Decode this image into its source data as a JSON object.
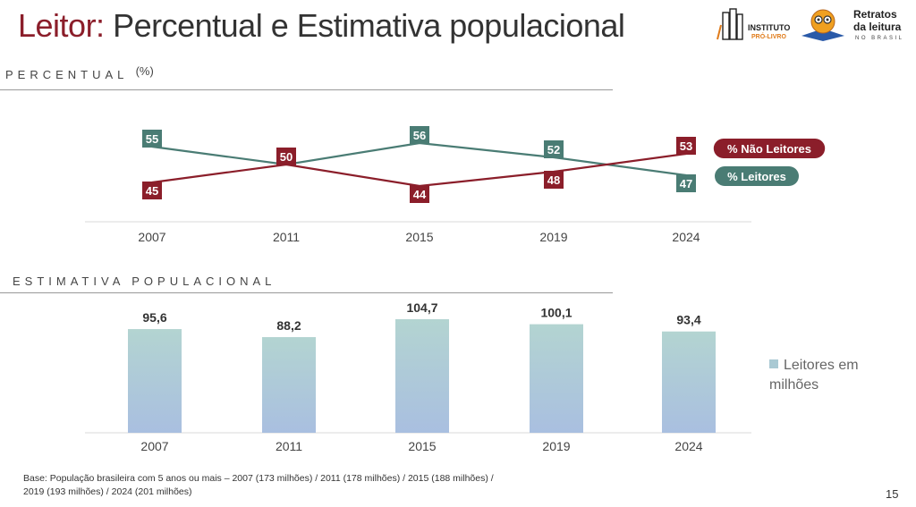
{
  "title": {
    "part1": "Leitor:",
    "part2": "Percentual e Estimativa populacional"
  },
  "logos": {
    "instituto": {
      "line1": "INSTITUTO",
      "line2": "PRÓ-LIVRO"
    },
    "retratos": {
      "line1": "Retratos",
      "line2": "da leitura",
      "line3": "NO BRASIL"
    }
  },
  "section1": {
    "label": "PERCENTUAL",
    "unit": "(%)"
  },
  "section2": {
    "label": "ESTIMATIVA POPULACIONAL"
  },
  "colors": {
    "leitores": "#4a7c74",
    "nao_leitores": "#8b1e2a",
    "bar_top": "#b3d4d1",
    "bar_bottom": "#a9bfe0",
    "title_accent": "#8b1e2a"
  },
  "chart_data": [
    {
      "type": "line",
      "categories": [
        "2007",
        "2011",
        "2015",
        "2019",
        "2024"
      ],
      "series": [
        {
          "name": "% Leitores",
          "values": [
            55,
            50,
            56,
            52,
            47
          ],
          "color": "#4a7c74"
        },
        {
          "name": "% Não Leitores",
          "values": [
            45,
            50,
            44,
            48,
            53
          ],
          "color": "#8b1e2a"
        }
      ],
      "data_labels": {
        "leitores": [
          "55",
          "50",
          "56",
          "52",
          "47"
        ],
        "nao_leitores": [
          "45",
          "50",
          "44",
          "48",
          "53"
        ]
      },
      "ylim": [
        40,
        60
      ],
      "legend": "right"
    },
    {
      "type": "bar",
      "categories": [
        "2007",
        "2011",
        "2015",
        "2019",
        "2024"
      ],
      "values": [
        95.6,
        88.2,
        104.7,
        100.1,
        93.4
      ],
      "data_labels": [
        "95,6",
        "88,2",
        "104,7",
        "100,1",
        "93,4"
      ],
      "series_name": "Leitores em milhões",
      "legend_lines": [
        "Leitores em",
        "milhões"
      ],
      "ylim": [
        0,
        110
      ],
      "legend": "right"
    }
  ],
  "footnote": {
    "line1": "Base: População brasileira com 5 anos ou mais – 2007 (173 milhões) / 2011 (178 milhões) / 2015 (188 milhões) /",
    "line2": "2019 (193 milhões) / 2024 (201 milhões)"
  },
  "page_number": "15"
}
